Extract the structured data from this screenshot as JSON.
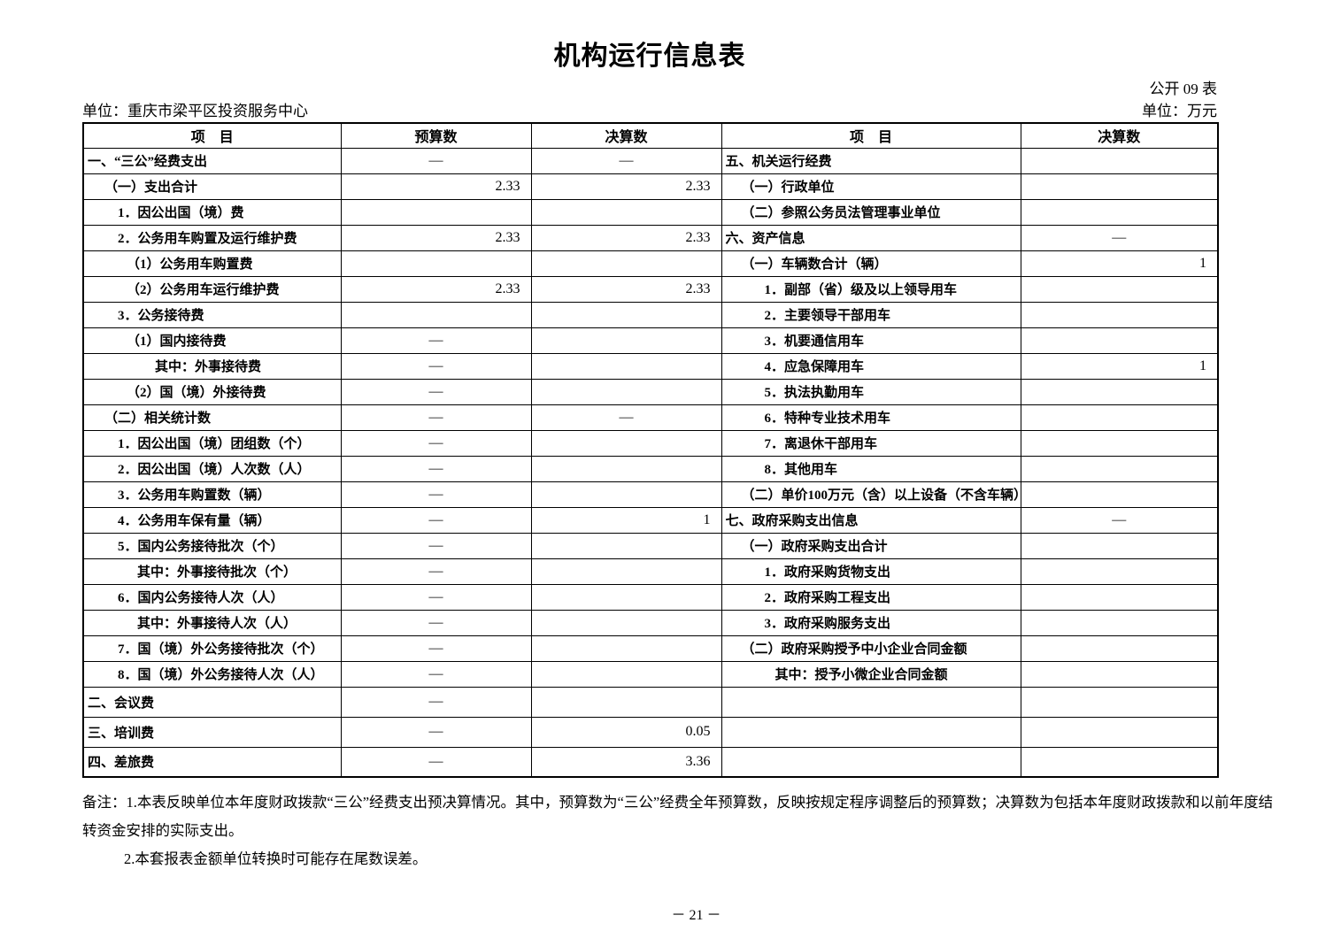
{
  "page": {
    "title": "机构运行信息表",
    "table_code": "公开 09 表",
    "unit_left": "单位：重庆市梁平区投资服务中心",
    "unit_right": "单位：万元",
    "page_number": "－ 21 －"
  },
  "table": {
    "headers": [
      "项　目",
      "预算数",
      "决算数",
      "项　目",
      "决算数"
    ],
    "rows": [
      {
        "left": "一、“三公”经费支出",
        "left_indent": 0,
        "budget": "—",
        "final": "—",
        "right": "五、机关运行经费",
        "right_indent": 0,
        "right_final": "",
        "tall": false
      },
      {
        "left": "（一）支出合计",
        "left_indent": 1,
        "budget": "2.33",
        "final": "2.33",
        "right": "（一）行政单位",
        "right_indent": 1,
        "right_final": "",
        "tall": false
      },
      {
        "left": "1．因公出国（境）费",
        "left_indent": 2,
        "budget": "",
        "final": "",
        "right": "（二）参照公务员法管理事业单位",
        "right_indent": 1,
        "right_final": "",
        "tall": false
      },
      {
        "left": "2．公务用车购置及运行维护费",
        "left_indent": 2,
        "budget": "2.33",
        "final": "2.33",
        "right": "六、资产信息",
        "right_indent": 0,
        "right_final": "—",
        "tall": false
      },
      {
        "left": "（1）公务用车购置费",
        "left_indent": 3,
        "budget": "",
        "final": "",
        "right": "（一）车辆数合计（辆）",
        "right_indent": 1,
        "right_final": "1",
        "tall": false
      },
      {
        "left": "（2）公务用车运行维护费",
        "left_indent": 3,
        "budget": "2.33",
        "final": "2.33",
        "right": "1．副部（省）级及以上领导用车",
        "right_indent": 2,
        "right_final": "",
        "tall": false
      },
      {
        "left": "3．公务接待费",
        "left_indent": 2,
        "budget": "",
        "final": "",
        "right": "2．主要领导干部用车",
        "right_indent": 2,
        "right_final": "",
        "tall": false
      },
      {
        "left": "（1）国内接待费",
        "left_indent": 3,
        "budget": "—",
        "final": "",
        "right": "3．机要通信用车",
        "right_indent": 2,
        "right_final": "",
        "tall": false
      },
      {
        "left": "其中：外事接待费",
        "left_indent": 5,
        "budget": "—",
        "final": "",
        "right": "4．应急保障用车",
        "right_indent": 2,
        "right_final": "1",
        "tall": false
      },
      {
        "left": "（2）国（境）外接待费",
        "left_indent": 3,
        "budget": "—",
        "final": "",
        "right": "5．执法执勤用车",
        "right_indent": 2,
        "right_final": "",
        "tall": false
      },
      {
        "left": "（二）相关统计数",
        "left_indent": 1,
        "budget": "—",
        "final": "—",
        "right": "6．特种专业技术用车",
        "right_indent": 2,
        "right_final": "",
        "tall": false
      },
      {
        "left": "1．因公出国（境）团组数（个）",
        "left_indent": 2,
        "budget": "—",
        "final": "",
        "right": "7．离退休干部用车",
        "right_indent": 2,
        "right_final": "",
        "tall": false
      },
      {
        "left": "2．因公出国（境）人次数（人）",
        "left_indent": 2,
        "budget": "—",
        "final": "",
        "right": "8．其他用车",
        "right_indent": 2,
        "right_final": "",
        "tall": false
      },
      {
        "left": "3．公务用车购置数（辆）",
        "left_indent": 2,
        "budget": "—",
        "final": "",
        "right": "（二）单价100万元（含）以上设备（不含车辆）",
        "right_indent": 1,
        "right_final": "",
        "tall": false
      },
      {
        "left": "4．公务用车保有量（辆）",
        "left_indent": 2,
        "budget": "—",
        "final": "1",
        "right": "七、政府采购支出信息",
        "right_indent": 0,
        "right_final": "—",
        "tall": false
      },
      {
        "left": "5．国内公务接待批次（个）",
        "left_indent": 2,
        "budget": "—",
        "final": "",
        "right": "（一）政府采购支出合计",
        "right_indent": 1,
        "right_final": "",
        "tall": false
      },
      {
        "left": "其中：外事接待批次（个）",
        "left_indent": 4,
        "budget": "—",
        "final": "",
        "right": "1．政府采购货物支出",
        "right_indent": 2,
        "right_final": "",
        "tall": false
      },
      {
        "left": "6．国内公务接待人次（人）",
        "left_indent": 2,
        "budget": "—",
        "final": "",
        "right": "2．政府采购工程支出",
        "right_indent": 2,
        "right_final": "",
        "tall": false
      },
      {
        "left": "其中：外事接待人次（人）",
        "left_indent": 4,
        "budget": "—",
        "final": "",
        "right": "3．政府采购服务支出",
        "right_indent": 2,
        "right_final": "",
        "tall": false
      },
      {
        "left": "7．国（境）外公务接待批次（个）",
        "left_indent": 2,
        "budget": "—",
        "final": "",
        "right": "（二）政府采购授予中小企业合同金额",
        "right_indent": 1,
        "right_final": "",
        "tall": false
      },
      {
        "left": "8．国（境）外公务接待人次（人）",
        "left_indent": 2,
        "budget": "—",
        "final": "",
        "right": "其中：授予小微企业合同金额",
        "right_indent": 3,
        "right_final": "",
        "tall": false
      },
      {
        "left": "二、会议费",
        "left_indent": 0,
        "budget": "—",
        "final": "",
        "right": "",
        "right_indent": 0,
        "right_final": "",
        "tall": true
      },
      {
        "left": "三、培训费",
        "left_indent": 0,
        "budget": "—",
        "final": "0.05",
        "right": "",
        "right_indent": 0,
        "right_final": "",
        "tall": true
      },
      {
        "left": "四、差旅费",
        "left_indent": 0,
        "budget": "—",
        "final": "3.36",
        "right": "",
        "right_indent": 0,
        "right_final": "",
        "tall": true
      }
    ]
  },
  "notes": {
    "note_1": "备注：1.本表反映单位本年度财政拨款“三公”经费支出预决算情况。其中，预算数为“三公”经费全年预算数，反映按规定程序调整后的预算数；决算数为包括本年度财政拨款和以前年度结转资金安排的实际支出。",
    "note_2": "2.本套报表金额单位转换时可能存在尾数误差。"
  }
}
